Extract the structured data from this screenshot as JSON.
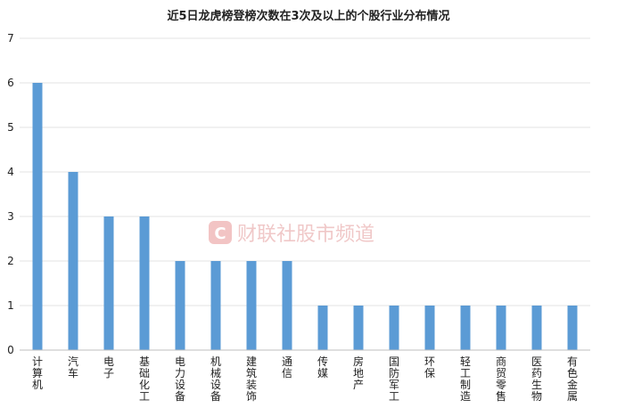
{
  "chart_data": {
    "type": "bar",
    "title": "近5日龙虎榜登榜次数在3次及以上的个股行业分布情况",
    "categories": [
      "计算机",
      "汽车",
      "电子",
      "基础化工",
      "电力设备",
      "机械设备",
      "建筑装饰",
      "通信",
      "传媒",
      "房地产",
      "国防军工",
      "环保",
      "轻工制造",
      "商贸零售",
      "医药生物",
      "有色金属"
    ],
    "values": [
      6,
      4,
      3,
      3,
      2,
      2,
      2,
      2,
      1,
      1,
      1,
      1,
      1,
      1,
      1,
      1
    ],
    "ylim": [
      0,
      7
    ],
    "yticks": [
      0,
      1,
      2,
      3,
      4,
      5,
      6,
      7
    ],
    "grid": true,
    "bar_color": "#5b9bd5",
    "grid_color": "#e3e3e3",
    "axis_color": "#bfbfbf"
  },
  "watermark": {
    "logo_letter": "C",
    "text": "财联社股市频道",
    "color": "#e8a0a0"
  }
}
